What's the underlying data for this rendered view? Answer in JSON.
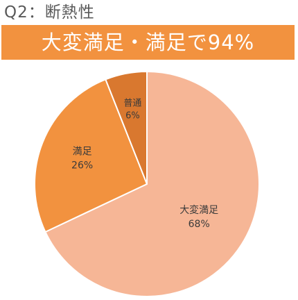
{
  "header": {
    "question_title": "Q2：断熱性",
    "banner_text": "大変満足・満足で94%"
  },
  "colors": {
    "banner": "#f2923f",
    "slice_very_satisfied": "#f6b696",
    "slice_satisfied": "#f2923f",
    "slice_normal": "#d9782f",
    "title_text": "#595959",
    "slice_border": "#ffffff"
  },
  "chart_data": {
    "type": "pie",
    "title": "",
    "slices": [
      {
        "label": "大変満足",
        "value": 68,
        "display": "68%",
        "color": "#f6b696"
      },
      {
        "label": "満足",
        "value": 26,
        "display": "26%",
        "color": "#f2923f"
      },
      {
        "label": "普通",
        "value": 6,
        "display": "6%",
        "color": "#d9782f"
      }
    ],
    "start_angle_deg": 0,
    "direction": "clockwise",
    "legend": "none",
    "labels": "inside"
  }
}
